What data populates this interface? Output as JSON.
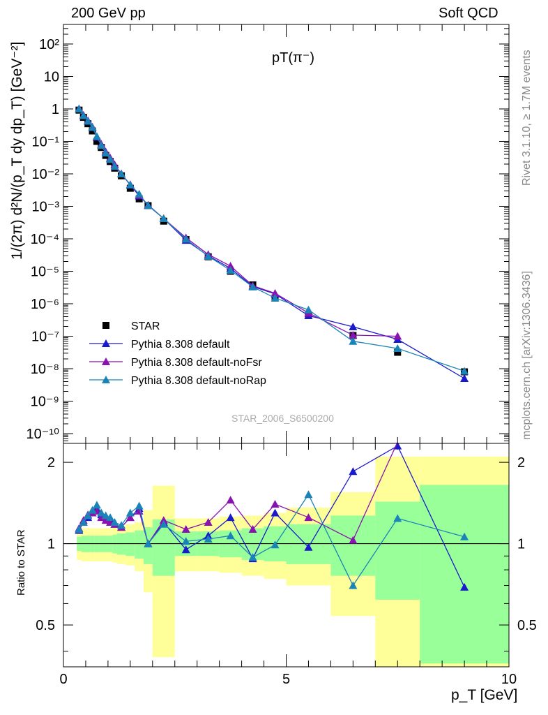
{
  "header": {
    "left": "200 GeV pp",
    "right": "Soft QCD"
  },
  "side_labels": {
    "rivet": "Rivet 3.1.10, ≥ 1.7M events",
    "mcplots": "mcplots.cern.ch [arXiv:1306.3436]"
  },
  "colors": {
    "STAR": "#000000",
    "Pythia 8.308 default": "#1a1acc",
    "Pythia 8.308 default-noFsr": "#8a12b0",
    "Pythia 8.308 default-noRap": "#1a84b8",
    "band_yellow": "#ffff99",
    "band_green": "#99ff99"
  },
  "chart_data": [
    {
      "type": "scatter",
      "panel": "main",
      "title": "pT(π⁻)",
      "xlabel": "p_T [GeV]",
      "ylabel": "1/(2π) d²N/(p_T dy dp_T) [GeV⁻²]",
      "yscale": "log",
      "xlim": [
        0,
        10
      ],
      "ylim": [
        5e-11,
        400
      ],
      "ytick_labels": [
        "10⁻¹⁰",
        "10⁻⁹",
        "10⁻⁸",
        "10⁻⁷",
        "10⁻⁶",
        "10⁻⁵",
        "10⁻⁴",
        "10⁻³",
        "10⁻²",
        "10⁻¹",
        "1",
        "10",
        "10²"
      ],
      "annotation": "STAR_2006_S6500200",
      "legend_position": "bottom-left",
      "x": [
        0.35,
        0.45,
        0.55,
        0.65,
        0.75,
        0.85,
        0.95,
        1.05,
        1.15,
        1.3,
        1.5,
        1.7,
        1.9,
        2.25,
        2.75,
        3.25,
        3.75,
        4.25,
        4.75,
        5.5,
        6.5,
        7.5,
        9.0
      ],
      "series": [
        {
          "name": "STAR",
          "marker": "square",
          "values": [
            0.92,
            0.55,
            0.35,
            0.21,
            0.1,
            0.065,
            0.037,
            0.024,
            0.015,
            0.0087,
            0.0036,
            0.0017,
            0.00105,
            0.00035,
            9.5e-05,
            2.8e-05,
            1e-05,
            3.8e-06,
            1.5e-06,
            4.5e-07,
            1.05e-07,
            3.2e-08,
            8e-09
          ]
        },
        {
          "name": "Pythia 8.308 default",
          "marker": "triangle",
          "values": [
            1.0,
            0.62,
            0.42,
            0.27,
            0.135,
            0.078,
            0.047,
            0.03,
            0.019,
            0.0101,
            0.0045,
            0.0021,
            0.0011,
            0.00042,
            9e-05,
            3e-05,
            1.23e-05,
            3.4e-06,
            2e-06,
            4.3e-07,
            1.95e-07,
            8e-08,
            5e-09
          ]
        },
        {
          "name": "Pythia 8.308 default-noFsr",
          "marker": "triangle",
          "values": [
            1.02,
            0.65,
            0.44,
            0.28,
            0.14,
            0.082,
            0.048,
            0.031,
            0.019,
            0.01,
            0.0047,
            0.0022,
            0.00106,
            0.00042,
            0.000108,
            3.3e-05,
            1.45e-05,
            3.6e-06,
            2.1e-06,
            5.2e-07,
            1.08e-07,
            1e-07,
            null
          ]
        },
        {
          "name": "Pythia 8.308 default-noRap",
          "marker": "triangle",
          "values": [
            1.0,
            0.62,
            0.42,
            0.27,
            0.142,
            0.075,
            0.044,
            0.028,
            0.017,
            0.01,
            0.0046,
            0.0024,
            0.00106,
            0.00042,
            9.8e-05,
            2.9e-05,
            1.07e-05,
            3.3e-06,
            1.5e-06,
            6.5e-07,
            7e-08,
            4.2e-08,
            8.4e-09
          ]
        }
      ]
    },
    {
      "type": "line",
      "panel": "ratio",
      "ylabel": "Ratio to STAR",
      "xlabel": "p_T [GeV]",
      "xlim": [
        0,
        10
      ],
      "ylim": [
        0.35,
        2.35
      ],
      "yscale": "log",
      "xtick_labels": [
        "0",
        "5",
        "10"
      ],
      "ytick_labels": [
        "0.5",
        "1",
        "2"
      ],
      "x": [
        0.35,
        0.45,
        0.55,
        0.65,
        0.75,
        0.85,
        0.95,
        1.05,
        1.15,
        1.3,
        1.5,
        1.7,
        1.9,
        2.25,
        2.75,
        3.25,
        3.75,
        4.25,
        4.75,
        5.5,
        6.5,
        7.5,
        9.0
      ],
      "series": [
        {
          "name": "Pythia 8.308 default",
          "values": [
            1.12,
            1.2,
            1.25,
            1.3,
            1.35,
            1.28,
            1.25,
            1.22,
            1.18,
            1.15,
            1.25,
            1.35,
            1.0,
            1.2,
            0.95,
            1.07,
            1.25,
            0.88,
            1.3,
            0.97,
            1.85,
            2.3,
            0.69
          ]
        },
        {
          "name": "Pythia 8.308 default-noFsr",
          "values": [
            1.14,
            1.22,
            1.28,
            1.3,
            1.32,
            1.25,
            1.22,
            1.2,
            1.18,
            1.15,
            1.25,
            1.32,
            1.0,
            1.22,
            1.13,
            1.2,
            1.45,
            1.13,
            1.4,
            1.25,
            1.03,
            3.5,
            null
          ]
        },
        {
          "name": "Pythia 8.308 default-noRap",
          "values": [
            1.13,
            1.2,
            1.27,
            1.33,
            1.39,
            1.3,
            1.27,
            1.25,
            1.2,
            1.17,
            1.3,
            1.38,
            1.0,
            1.18,
            1.02,
            1.04,
            1.07,
            0.89,
            0.99,
            1.52,
            0.7,
            1.24,
            1.06
          ]
        }
      ],
      "band_edges": [
        0.3,
        0.4,
        0.5,
        0.6,
        0.7,
        0.8,
        0.9,
        1.0,
        1.1,
        1.2,
        1.4,
        1.6,
        1.8,
        2.0,
        2.5,
        3.0,
        3.5,
        4.0,
        4.5,
        5.0,
        6.0,
        7.0,
        8.0,
        10.0
      ],
      "band_green": [
        [
          0.94,
          1.06
        ],
        [
          0.93,
          1.07
        ],
        [
          0.93,
          1.07
        ],
        [
          0.93,
          1.07
        ],
        [
          0.93,
          1.07
        ],
        [
          0.93,
          1.07
        ],
        [
          0.93,
          1.07
        ],
        [
          0.93,
          1.07
        ],
        [
          0.92,
          1.08
        ],
        [
          0.91,
          1.09
        ],
        [
          0.9,
          1.1
        ],
        [
          0.88,
          1.12
        ],
        [
          0.84,
          1.15
        ],
        [
          0.76,
          1.23
        ],
        [
          0.9,
          1.11
        ],
        [
          0.9,
          1.11
        ],
        [
          0.89,
          1.12
        ],
        [
          0.87,
          1.14
        ],
        [
          0.86,
          1.16
        ],
        [
          0.84,
          1.18
        ],
        [
          0.76,
          1.27
        ],
        [
          0.62,
          1.43
        ],
        [
          0.36,
          1.65
        ]
      ],
      "band_yellow": [
        [
          0.87,
          1.13
        ],
        [
          0.86,
          1.14
        ],
        [
          0.86,
          1.14
        ],
        [
          0.86,
          1.14
        ],
        [
          0.86,
          1.14
        ],
        [
          0.86,
          1.14
        ],
        [
          0.86,
          1.14
        ],
        [
          0.86,
          1.14
        ],
        [
          0.85,
          1.15
        ],
        [
          0.84,
          1.16
        ],
        [
          0.83,
          1.18
        ],
        [
          0.79,
          1.2
        ],
        [
          0.66,
          1.33
        ],
        [
          0.38,
          1.64
        ],
        [
          0.79,
          1.24
        ],
        [
          0.79,
          1.24
        ],
        [
          0.78,
          1.26
        ],
        [
          0.76,
          1.27
        ],
        [
          0.74,
          1.3
        ],
        [
          0.7,
          1.36
        ],
        [
          0.54,
          1.55
        ],
        [
          0.35,
          2.1
        ],
        [
          0.35,
          2.1
        ]
      ]
    }
  ]
}
